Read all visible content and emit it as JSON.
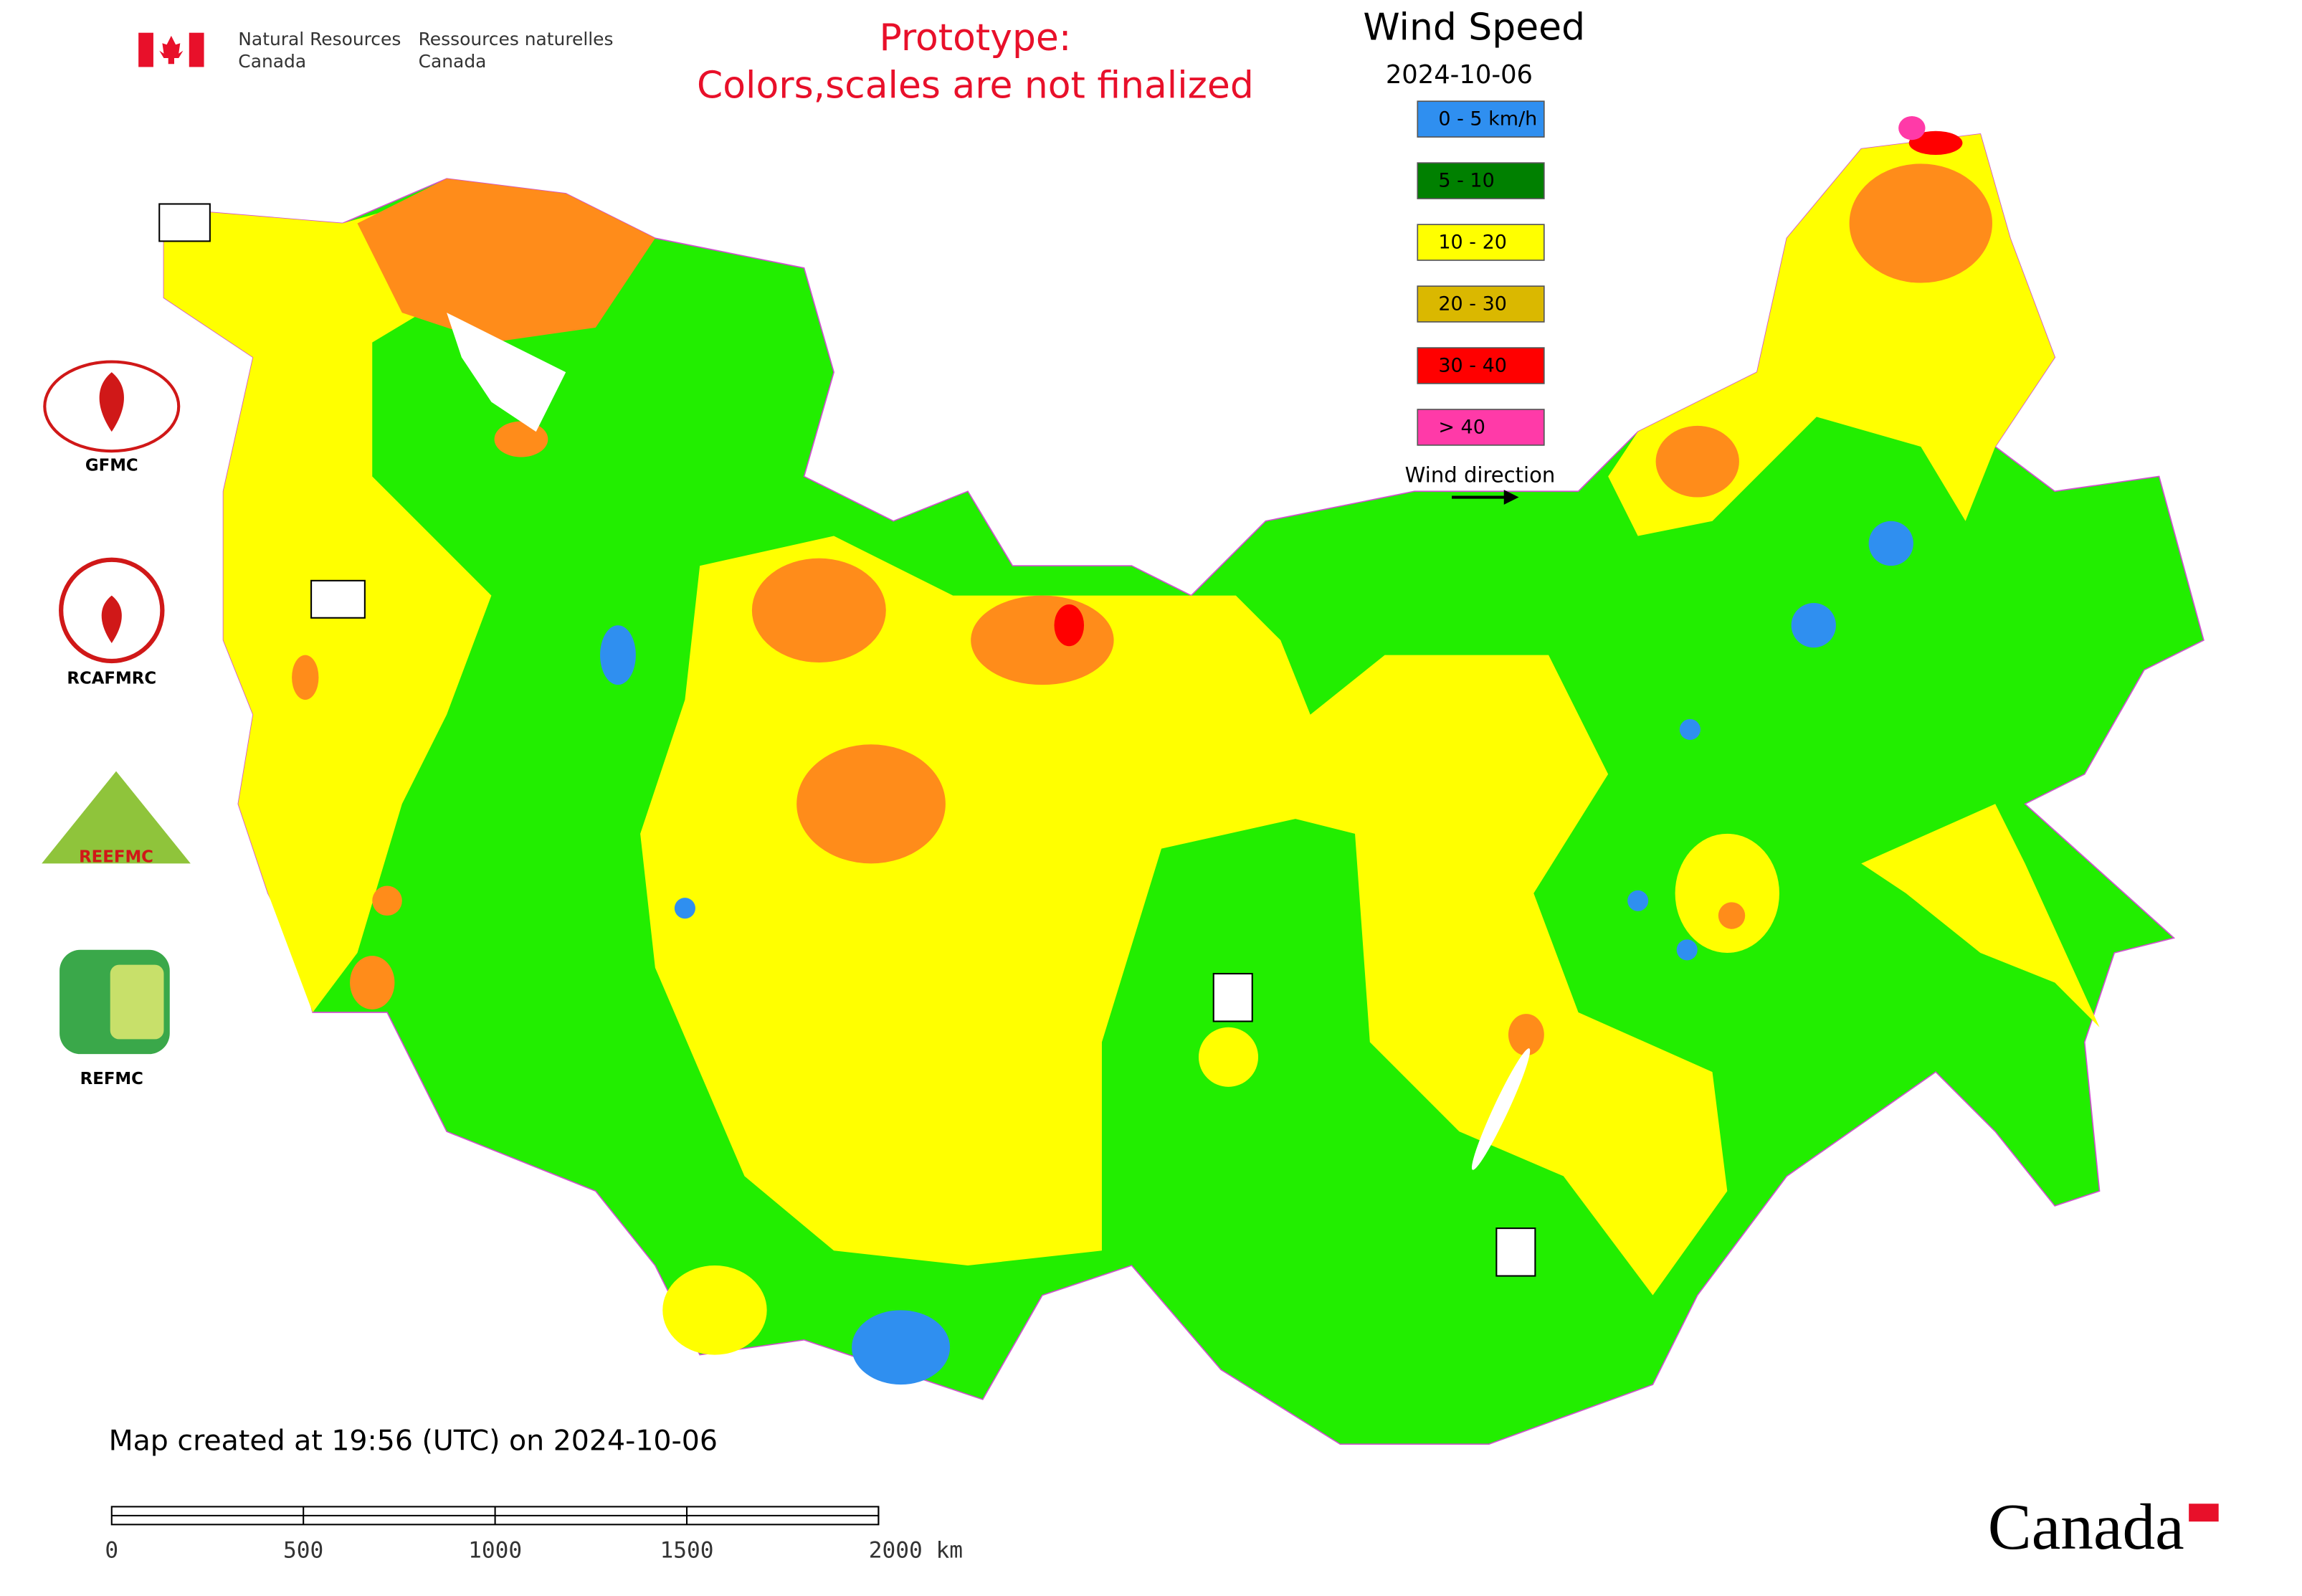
{
  "header": {
    "agency_en": [
      "Natural Resources",
      "Canada"
    ],
    "agency_fr": [
      "Ressources naturelles",
      "Canada"
    ],
    "notice": [
      "Prototype:",
      "Colors,scales are not finalized"
    ]
  },
  "legend": {
    "title": "Wind Speed",
    "date": "2024-10-06",
    "items": [
      {
        "label": "0 - 5 km/h",
        "color": "#2f8ff0"
      },
      {
        "label": "5 - 10",
        "color": "#008000"
      },
      {
        "label": "10 - 20",
        "color": "#ffff00"
      },
      {
        "label": "20 - 30",
        "color": "#dab800"
      },
      {
        "label": "30 - 40",
        "color": "#ff0000"
      },
      {
        "label": "> 40",
        "color": "#ff3aa8"
      }
    ],
    "direction_label": "Wind direction"
  },
  "logos": [
    "GFMC",
    "RCAFMRC",
    "REEFMC",
    "REFMC"
  ],
  "footer": {
    "created": "Map created at 19:56 (UTC) on 2024-10-06",
    "scale_labels": [
      "0",
      "500",
      "1000",
      "1500",
      "2000 km"
    ],
    "wordmark": "Canada"
  }
}
